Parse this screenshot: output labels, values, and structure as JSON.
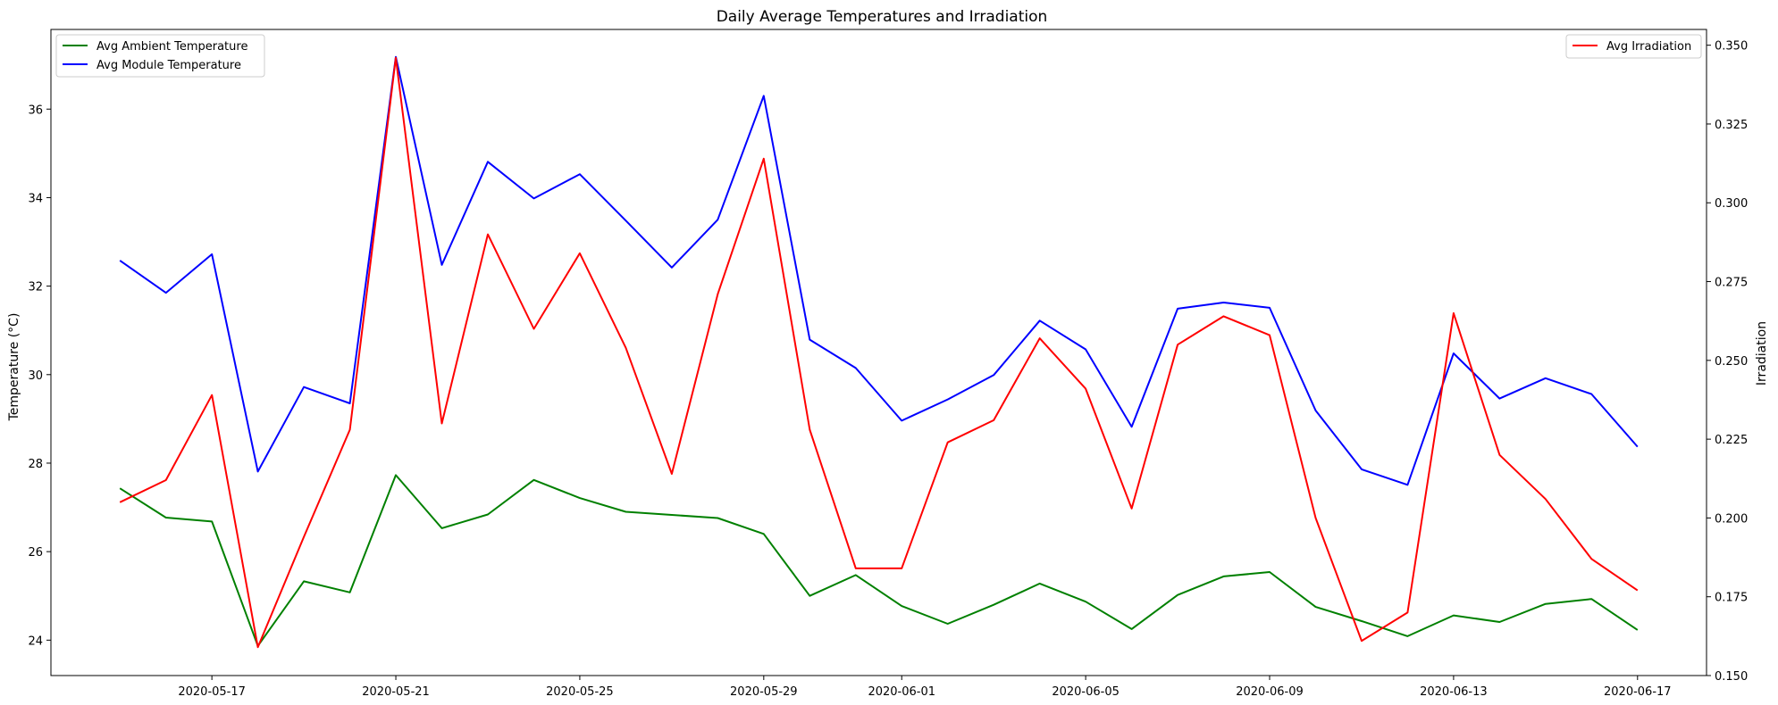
{
  "chart_data": {
    "type": "line",
    "title": "Daily Average Temperatures and Irradiation",
    "xlabel": "",
    "ylabel": "Temperature (°C)",
    "y2label": "Irradiation",
    "x": [
      "2020-05-15",
      "2020-05-16",
      "2020-05-17",
      "2020-05-18",
      "2020-05-19",
      "2020-05-20",
      "2020-05-21",
      "2020-05-22",
      "2020-05-23",
      "2020-05-24",
      "2020-05-25",
      "2020-05-26",
      "2020-05-27",
      "2020-05-28",
      "2020-05-29",
      "2020-05-30",
      "2020-05-31",
      "2020-06-01",
      "2020-06-02",
      "2020-06-03",
      "2020-06-04",
      "2020-06-05",
      "2020-06-06",
      "2020-06-07",
      "2020-06-08",
      "2020-06-09",
      "2020-06-10",
      "2020-06-11",
      "2020-06-12",
      "2020-06-13",
      "2020-06-14",
      "2020-06-15",
      "2020-06-16",
      "2020-06-17"
    ],
    "xticks": [
      "2020-05-17",
      "2020-05-21",
      "2020-05-25",
      "2020-05-29",
      "2020-06-01",
      "2020-06-05",
      "2020-06-09",
      "2020-06-13",
      "2020-06-17"
    ],
    "xlim": [
      "2020-05-13T12:00",
      "2020-06-18T12:00"
    ],
    "ylim": [
      23.2,
      37.8
    ],
    "yticks": [
      24,
      26,
      28,
      30,
      32,
      34,
      36
    ],
    "y2lim": [
      0.15,
      0.355
    ],
    "y2ticks": [
      "0.150",
      "0.175",
      "0.200",
      "0.225",
      "0.250",
      "0.275",
      "0.300",
      "0.325",
      "0.350"
    ],
    "series": [
      {
        "name": "Avg Ambient Temperature",
        "axis": "left",
        "color": "#008000",
        "values": [
          27.43,
          26.77,
          26.68,
          23.87,
          25.33,
          25.08,
          27.73,
          26.53,
          26.84,
          27.62,
          27.21,
          26.9,
          26.83,
          26.76,
          26.4,
          25.0,
          25.47,
          24.77,
          24.37,
          24.8,
          25.28,
          24.87,
          24.25,
          25.02,
          25.44,
          25.54,
          24.75,
          24.43,
          24.09,
          24.56,
          24.41,
          24.82,
          24.93,
          24.23
        ]
      },
      {
        "name": "Avg Module Temperature",
        "axis": "left",
        "color": "#0000ff",
        "values": [
          32.58,
          31.85,
          32.72,
          27.81,
          29.72,
          29.35,
          37.18,
          32.48,
          34.81,
          33.98,
          34.53,
          33.48,
          32.42,
          33.5,
          36.3,
          30.79,
          30.15,
          28.96,
          29.44,
          29.99,
          31.22,
          30.57,
          28.82,
          31.49,
          31.63,
          31.51,
          29.19,
          27.86,
          27.51,
          30.48,
          29.46,
          29.92,
          29.56,
          28.37
        ]
      },
      {
        "name": "Avg Irradiation",
        "axis": "right",
        "color": "#ff0000",
        "values": [
          0.205,
          0.212,
          0.239,
          0.159,
          0.194,
          0.228,
          0.346,
          0.23,
          0.29,
          0.26,
          0.284,
          0.254,
          0.214,
          0.271,
          0.314,
          0.228,
          0.184,
          0.184,
          0.224,
          0.231,
          0.257,
          0.241,
          0.203,
          0.255,
          0.264,
          0.258,
          0.2,
          0.161,
          0.17,
          0.265,
          0.22,
          0.206,
          0.187,
          0.177
        ]
      }
    ],
    "legend_left": "top-left",
    "legend_right": "top-right",
    "grid": false
  }
}
